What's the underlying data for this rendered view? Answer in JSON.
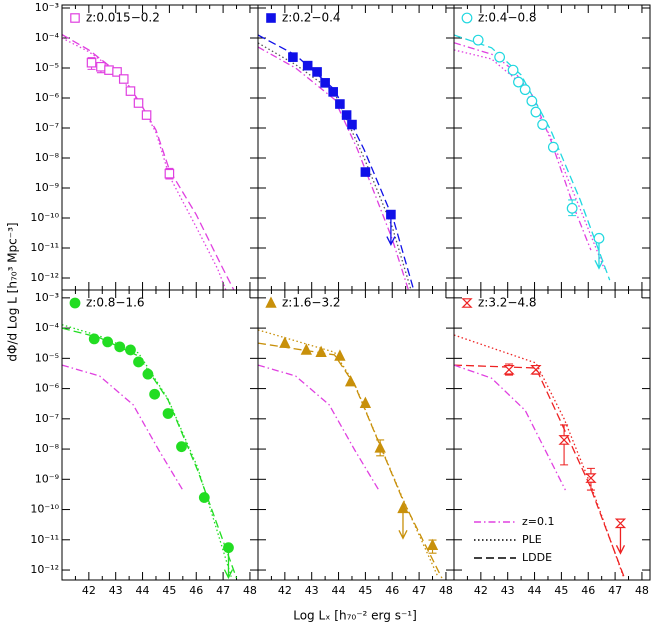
{
  "axes": {
    "xlabel": "Log Lₓ [h₇₀⁻² erg s⁻¹]",
    "ylabel": "dΦ/d Log L [h₇₀³ Mpc⁻³]"
  },
  "chart_data": [
    {
      "type": "scatter",
      "label": "z:0.015−0.2",
      "color": "#e040e0",
      "marker": "open-square",
      "ylog": true,
      "ylim": [
        3.98e-13,
        0.00126
      ],
      "yticks": [
        {
          "value": 0.001,
          "label": "10⁻³"
        },
        {
          "value": 0.0001,
          "label": "10⁻⁴"
        },
        {
          "value": 1e-05,
          "label": "10⁻⁵"
        },
        {
          "value": 1e-06,
          "label": "10⁻⁶"
        },
        {
          "value": 1e-07,
          "label": "10⁻⁷"
        },
        {
          "value": 1e-08,
          "label": "10⁻⁸"
        },
        {
          "value": 1e-09,
          "label": "10⁻⁹"
        },
        {
          "value": 1e-10,
          "label": "10⁻¹⁰"
        },
        {
          "value": 1e-11,
          "label": "10⁻¹¹"
        },
        {
          "value": 1e-12,
          "label": "10⁻¹²"
        }
      ],
      "points": {
        "x": [
          42.1,
          42.45,
          42.75,
          43.05,
          43.3,
          43.55,
          43.85,
          44.15,
          45.0
        ],
        "values": [
          1.5e-05,
          1.1e-05,
          8.5e-06,
          7.4e-06,
          4.3e-06,
          1.7e-06,
          6.8e-07,
          2.7e-07,
          3e-09
        ],
        "y_lower": [
          9e-06,
          7e-06,
          null,
          null,
          null,
          null,
          null,
          null,
          2e-09
        ],
        "y_upper": [
          2.2e-05,
          1.5e-05,
          null,
          null,
          null,
          null,
          null,
          null,
          4.5e-09
        ],
        "upper_limit": [
          false,
          false,
          false,
          false,
          false,
          false,
          false,
          false,
          false
        ]
      },
      "curves": [
        {
          "style": "dashed",
          "color": "#e040e0",
          "x": [
            41,
            42,
            43,
            43.5,
            44,
            44.5,
            45,
            46,
            47,
            47.4
          ],
          "values": [
            0.00013,
            4e-05,
            8e-06,
            2.5e-06,
            5e-07,
            8.5e-08,
            4e-09,
            1.3e-10,
            2e-12,
            4e-13
          ]
        },
        {
          "style": "dotted",
          "color": "#e040e0",
          "x": [
            41,
            42,
            43,
            44,
            44.5,
            45,
            46,
            46.8,
            47.1
          ],
          "values": [
            0.0001,
            3.5e-05,
            8e-06,
            5e-07,
            7e-08,
            2.5e-09,
            5e-11,
            2e-12,
            4e-13
          ]
        }
      ]
    },
    {
      "type": "scatter",
      "label": "z:0.2−0.4",
      "color": "#1010e8",
      "marker": "filled-square",
      "ylog": true,
      "points": {
        "x": [
          42.3,
          42.85,
          43.2,
          43.5,
          43.8,
          44.05,
          44.3,
          44.5,
          45.0,
          45.95
        ],
        "values": [
          2.3e-05,
          1.2e-05,
          7.4e-06,
          3.2e-06,
          1.6e-06,
          6.3e-07,
          2.7e-07,
          1.3e-07,
          3.4e-09,
          1.3e-10
        ],
        "y_lower": [
          null,
          null,
          null,
          null,
          null,
          null,
          null,
          null,
          null,
          null
        ],
        "y_upper": [
          null,
          null,
          null,
          null,
          null,
          null,
          null,
          null,
          null,
          null
        ],
        "upper_limit": [
          false,
          false,
          false,
          false,
          false,
          false,
          false,
          false,
          false,
          true
        ]
      },
      "curves": [
        {
          "style": "dashed",
          "color": "#1010e8",
          "x": [
            41,
            42.4,
            43.85,
            44.95,
            46.05,
            46.8
          ],
          "values": [
            0.000126,
            2.7e-05,
            1.9e-06,
            1.9e-08,
            8.5e-11,
            4e-13
          ]
        },
        {
          "style": "dotted",
          "color": "#555555",
          "x": [
            41,
            42.4,
            43.85,
            44.95,
            46,
            46.7
          ],
          "values": [
            6.8e-05,
            1.3e-05,
            1.5e-06,
            1e-08,
            5e-11,
            4e-13
          ]
        },
        {
          "style": "dashdot",
          "color": "#e040e0",
          "x": [
            41,
            42.4,
            43.85,
            44.7,
            46,
            46.6
          ],
          "values": [
            5e-05,
            1e-05,
            9e-07,
            2e-08,
            2e-11,
            4e-13
          ]
        }
      ]
    },
    {
      "type": "scatter",
      "label": "z:0.4−0.8",
      "color": "#22d8e0",
      "marker": "open-circle",
      "ylog": true,
      "points": {
        "x": [
          41.9,
          42.7,
          43.2,
          43.4,
          43.65,
          43.9,
          44.05,
          44.3,
          44.7,
          45.4,
          46.4
        ],
        "values": [
          8.5e-05,
          2.3e-05,
          8.5e-06,
          3.4e-06,
          1.9e-06,
          7.9e-07,
          3.4e-07,
          1.3e-07,
          2.3e-08,
          2.1e-10,
          2.1e-11
        ],
        "y_lower": [
          null,
          null,
          null,
          null,
          null,
          null,
          null,
          null,
          null,
          1.2e-10,
          null
        ],
        "y_upper": [
          null,
          null,
          null,
          null,
          null,
          null,
          null,
          null,
          null,
          4e-10,
          null
        ],
        "upper_limit": [
          false,
          false,
          false,
          false,
          false,
          false,
          false,
          false,
          false,
          false,
          true
        ]
      },
      "curves": [
        {
          "style": "dashed",
          "color": "#22d8e0",
          "x": [
            41,
            42.4,
            43.5,
            44.6,
            45.7,
            46.8
          ],
          "values": [
            0.000126,
            4.7e-05,
            5.9e-06,
            8.5e-08,
            4e-10,
            8.5e-13
          ]
        },
        {
          "style": "dotted",
          "color": "#e040e0",
          "x": [
            41,
            42.4,
            43.5,
            44.6,
            45.7,
            46.6
          ],
          "values": [
            4e-05,
            2e-05,
            3e-06,
            5e-08,
            2e-10,
            2e-12
          ]
        },
        {
          "style": "dashdot",
          "color": "#e040e0",
          "x": [
            41,
            42.5,
            43.2,
            43.9,
            44.6,
            45.5,
            46.1
          ],
          "values": [
            7e-05,
            2.7e-05,
            8.5e-06,
            1.3e-06,
            4e-08,
            1.9e-10,
            8.5e-12
          ]
        }
      ]
    },
    {
      "type": "scatter",
      "label": "z:0.8−1.6",
      "color": "#22dd22",
      "marker": "filled-circle",
      "ylog": true,
      "xlim": [
        41,
        48.3
      ],
      "xticks": [
        42,
        43,
        44,
        45,
        46,
        47,
        48
      ],
      "ylim": [
        4.68e-13,
        0.00182
      ],
      "yticks": [
        {
          "value": 0.001,
          "label": "10⁻³"
        },
        {
          "value": 0.0001,
          "label": "10⁻⁴"
        },
        {
          "value": 1e-05,
          "label": "10⁻⁵"
        },
        {
          "value": 1e-06,
          "label": "10⁻⁶"
        },
        {
          "value": 1e-07,
          "label": "10⁻⁷"
        },
        {
          "value": 1e-08,
          "label": "10⁻⁸"
        },
        {
          "value": 1e-09,
          "label": "10⁻⁹"
        },
        {
          "value": 1e-10,
          "label": "10⁻¹⁰"
        },
        {
          "value": 1e-11,
          "label": "10⁻¹¹"
        },
        {
          "value": 1e-12,
          "label": "10⁻¹²"
        }
      ],
      "points": {
        "x": [
          42.2,
          42.7,
          43.15,
          43.55,
          43.85,
          44.2,
          44.45,
          44.95,
          45.45,
          46.3,
          47.2
        ],
        "values": [
          4.4e-05,
          3.5e-05,
          2.4e-05,
          1.9e-05,
          7.6e-06,
          3e-06,
          6.5e-07,
          1.5e-07,
          1.2e-08,
          2.5e-10,
          5.5e-12
        ],
        "y_lower": [
          null,
          null,
          null,
          null,
          null,
          null,
          null,
          null,
          null,
          null,
          null
        ],
        "y_upper": [
          null,
          null,
          null,
          null,
          null,
          null,
          null,
          null,
          null,
          null,
          null
        ],
        "upper_limit": [
          false,
          false,
          false,
          false,
          false,
          false,
          false,
          false,
          false,
          false,
          true
        ]
      },
      "curves": [
        {
          "style": "dashed",
          "color": "#22dd22",
          "x": [
            41,
            42.4,
            43.85,
            44.95,
            46.05,
            47.5
          ],
          "values": [
            0.0001,
            4.8e-05,
            1.2e-05,
            4.2e-07,
            2e-09,
            5.4e-13
          ]
        },
        {
          "style": "dotted",
          "color": "#22dd22",
          "x": [
            41,
            42.4,
            43.85,
            44.95,
            46.05,
            47.3
          ],
          "values": [
            0.00013,
            5.5e-05,
            1.5e-05,
            4.5e-07,
            2.5e-09,
            6e-13
          ]
        },
        {
          "style": "dashdot",
          "color": "#e040e0",
          "x": [
            41,
            42.4,
            43.65,
            44.6,
            45.5
          ],
          "values": [
            6e-06,
            2.6e-06,
            2.9e-07,
            9.3e-09,
            4.4e-10
          ]
        }
      ]
    },
    {
      "type": "scatter",
      "label": "z:1.6−3.2",
      "color": "#c8900a",
      "marker": "filled-triangle",
      "ylog": true,
      "xlim": [
        41,
        48.3
      ],
      "xticks": [
        42,
        43,
        44,
        45,
        46,
        47,
        48
      ],
      "points": {
        "x": [
          42.0,
          42.8,
          43.35,
          44.05,
          44.45,
          45.0,
          45.55,
          46.4,
          47.5
        ],
        "values": [
          3.2e-05,
          1.9e-05,
          1.6e-05,
          1.2e-05,
          1.7e-06,
          3.3e-07,
          1.1e-08,
          1.1e-10,
          6.6e-12
        ],
        "y_lower": [
          null,
          null,
          null,
          null,
          null,
          null,
          6e-09,
          null,
          3.6e-12
        ],
        "y_upper": [
          null,
          null,
          null,
          null,
          null,
          null,
          2e-08,
          null,
          9.8e-12
        ],
        "upper_limit": [
          false,
          false,
          false,
          false,
          false,
          false,
          false,
          true,
          false
        ]
      },
      "curves": [
        {
          "style": "dashed",
          "color": "#c8900a",
          "x": [
            41,
            43.85,
            44.6,
            45.3,
            46.4,
            47.85
          ],
          "values": [
            3.2e-05,
            1.3e-05,
            1.3e-06,
            4.3e-08,
            2e-10,
            5.4e-13
          ]
        },
        {
          "style": "dotted",
          "color": "#c8900a",
          "x": [
            41,
            43.85,
            44.6,
            45.3,
            46.4,
            47.7
          ],
          "values": [
            8.7e-05,
            1.6e-05,
            1.4e-06,
            4.5e-08,
            2.2e-10,
            6e-13
          ]
        },
        {
          "style": "dashdot",
          "color": "#e040e0",
          "x": [
            41,
            42.4,
            43.65,
            44.6,
            45.5
          ],
          "values": [
            6e-06,
            2.6e-06,
            2.9e-07,
            9.3e-09,
            4.4e-10
          ]
        }
      ]
    },
    {
      "type": "scatter",
      "label": "z:3.2−4.8",
      "color": "#ee2222",
      "marker": "open-hourglass",
      "ylog": true,
      "xlim": [
        41,
        48.3
      ],
      "xticks": [
        42,
        43,
        44,
        45,
        46,
        47,
        48
      ],
      "points": {
        "x": [
          43.05,
          44.05,
          45.1,
          46.1,
          47.2
        ],
        "values": [
          4.2e-06,
          4.2e-06,
          2e-08,
          1.1e-09,
          3.5e-11
        ],
        "y_lower": [
          2.8e-06,
          3e-06,
          3e-09,
          4.4e-10,
          null
        ],
        "y_upper": [
          6.5e-06,
          5.5e-06,
          6.3e-08,
          2.3e-09,
          null
        ],
        "upper_limit": [
          false,
          false,
          false,
          false,
          true
        ]
      },
      "curves": [
        {
          "style": "dashed",
          "color": "#ee2222",
          "x": [
            41,
            44.05,
            44.95,
            46.05,
            47.35
          ],
          "values": [
            6e-06,
            4.8e-06,
            9e-08,
            6.5e-10,
            5.4e-13
          ]
        },
        {
          "style": "dotted",
          "color": "#ee2222",
          "x": [
            41,
            44.05,
            45.1,
            46.1,
            47.3
          ],
          "values": [
            5.9e-05,
            7e-06,
            1e-07,
            6.3e-10,
            6.3e-13
          ]
        },
        {
          "style": "dashdot",
          "color": "#e040e0",
          "x": [
            41,
            42.4,
            43.65,
            45.15
          ],
          "values": [
            6e-06,
            2.2e-06,
            1.9e-07,
            4.4e-10
          ]
        }
      ],
      "legend": {
        "position": "lower left",
        "entries": [
          {
            "name": "z=0.1",
            "style": "dashdot",
            "color": "#e040e0"
          },
          {
            "name": "PLE",
            "style": "dotted",
            "color": "#000000"
          },
          {
            "name": "LDDE",
            "style": "dashed",
            "color": "#000000"
          }
        ]
      }
    }
  ]
}
